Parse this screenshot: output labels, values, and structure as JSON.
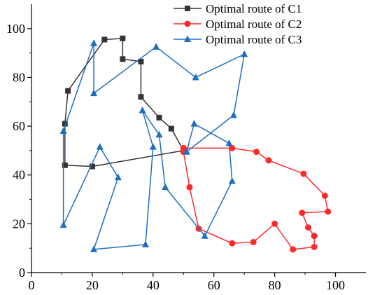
{
  "chart_data": {
    "type": "line",
    "xlim": [
      0,
      110
    ],
    "ylim": [
      0,
      110
    ],
    "x_ticks": [
      0,
      20,
      40,
      60,
      80,
      100
    ],
    "y_ticks": [
      0,
      20,
      40,
      60,
      80,
      100
    ],
    "grid": false,
    "legend_position": "top-right",
    "series": [
      {
        "name": "Optimal route of C1",
        "color": "#333333",
        "marker": "square",
        "points": [
          [
            50,
            50
          ],
          [
            46,
            59
          ],
          [
            42,
            63.5
          ],
          [
            36,
            72
          ],
          [
            36,
            86.5
          ],
          [
            30,
            87.5
          ],
          [
            30,
            96
          ],
          [
            24,
            95.5
          ],
          [
            12,
            74.5
          ],
          [
            11,
            61
          ],
          [
            11,
            44
          ],
          [
            20,
            43.5
          ],
          [
            50,
            50
          ]
        ]
      },
      {
        "name": "Optimal route of C2",
        "color": "#ff2a2a",
        "marker": "circle",
        "points": [
          [
            50,
            51
          ],
          [
            66,
            51
          ],
          [
            74,
            49.5
          ],
          [
            78,
            46
          ],
          [
            89.5,
            40.5
          ],
          [
            96.5,
            31.5
          ],
          [
            97.5,
            25
          ],
          [
            89,
            24.5
          ],
          [
            91,
            18.5
          ],
          [
            93,
            15
          ],
          [
            93,
            10.5
          ],
          [
            86,
            9.5
          ],
          [
            80,
            20
          ],
          [
            73,
            12.5
          ],
          [
            66,
            12
          ],
          [
            55,
            18
          ],
          [
            52,
            35
          ],
          [
            50,
            49.5
          ],
          [
            50,
            51
          ]
        ]
      },
      {
        "name": "Optimal route of C3",
        "color": "#1f6fc0",
        "marker": "triangle",
        "points": [
          [
            51,
            49.5
          ],
          [
            53.5,
            61
          ],
          [
            65,
            53
          ],
          [
            66,
            37.5
          ],
          [
            57,
            15
          ],
          [
            44,
            35
          ],
          [
            42,
            56.5
          ],
          [
            36.5,
            66.5
          ],
          [
            40,
            51.5
          ],
          [
            37.5,
            11.5
          ],
          [
            20.5,
            9.5
          ],
          [
            28.5,
            39
          ],
          [
            22.5,
            51.5
          ],
          [
            10.5,
            19.5
          ],
          [
            10.5,
            58
          ],
          [
            20.5,
            94
          ],
          [
            20.5,
            73.5
          ],
          [
            41,
            92.5
          ],
          [
            54,
            80
          ],
          [
            70,
            89.5
          ],
          [
            66.5,
            64.5
          ],
          [
            51,
            49.5
          ]
        ]
      }
    ]
  }
}
